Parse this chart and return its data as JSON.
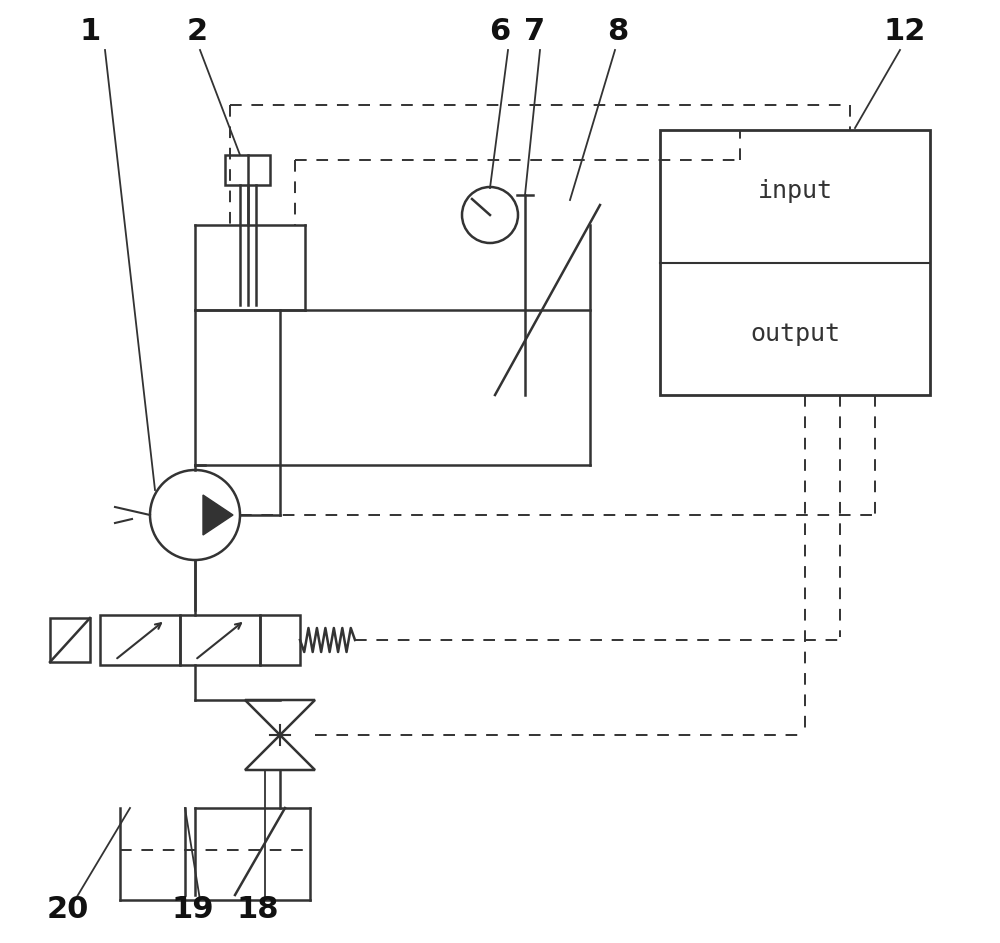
{
  "bg_color": "#ffffff",
  "line_color": "#333333",
  "label_color": "#111111",
  "figsize": [
    10.0,
    9.43
  ],
  "dpi": 100
}
